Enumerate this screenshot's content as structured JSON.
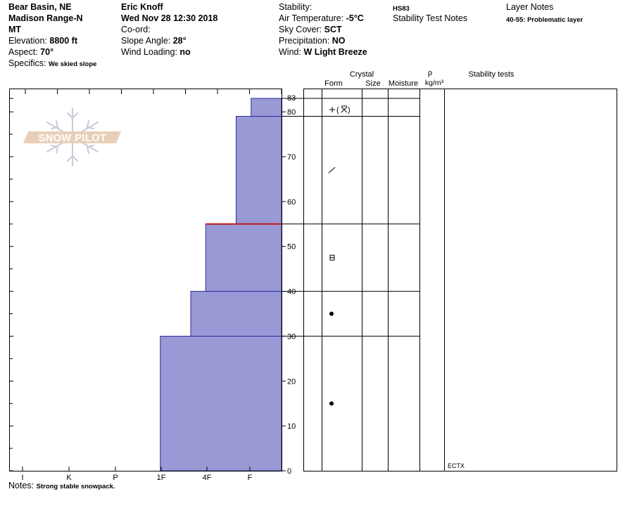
{
  "header": {
    "location_line1": "Bear Basin, NE",
    "location_line2": "Madison Range-N",
    "location_line3": "MT",
    "elevation_label": "Elevation:",
    "elevation_value": "8800 ft",
    "aspect_label": "Aspect:",
    "aspect_value": "70°",
    "specifics_label": "Specifics:",
    "specifics_value": "We skied slope",
    "observer": "Eric Knoff",
    "datetime": "Wed Nov 28 12:30 2018",
    "coord_label": "Co-ord:",
    "slope_label": "Slope Angle:",
    "slope_value": "28°",
    "wind_loading_label": "Wind Loading:",
    "wind_loading_value": "no",
    "stability_label": "Stability:",
    "air_temp_label": "Air Temperature:",
    "air_temp_value": "-5°C",
    "sky_label": "Sky Cover:",
    "sky_value": "SCT",
    "precip_label": "Precipitation:",
    "precip_value": "NO",
    "wind_label": "Wind:",
    "wind_value": "W Light Breeze",
    "hs_value": "HS83",
    "stability_notes_label": "Stability Test Notes",
    "layer_notes_label": "Layer Notes",
    "layer_notes_value": "40-55: Problematic layer"
  },
  "table_headers": {
    "crystal": "Crystal",
    "form": "Form",
    "size": "Size",
    "moisture": "Moisture",
    "rho": "ρ",
    "density_unit": "kg/m³",
    "stability_tests": "Stability tests"
  },
  "watermark": "SNOW PILOT",
  "notes_label": "Notes:",
  "notes_value": "Strong stable snowpack.",
  "stability_test_entry": "ECTX",
  "chart_data": {
    "type": "bar",
    "description_free": true,
    "y_axis": {
      "ylim": [
        0,
        83
      ],
      "ticks": [
        0,
        10,
        20,
        30,
        40,
        50,
        60,
        70,
        80,
        83
      ]
    },
    "x_axis": {
      "tick_labels": [
        "I",
        "K",
        "P",
        "1F",
        "4F",
        "F"
      ]
    },
    "hardness_scale_max": 6,
    "layers": [
      {
        "bottom": 0,
        "top": 30,
        "hardness_level": 2.67
      },
      {
        "bottom": 30,
        "top": 40,
        "hardness_level": 2.0
      },
      {
        "bottom": 40,
        "top": 55,
        "hardness_level": 1.67
      },
      {
        "bottom": 55,
        "top": 79,
        "hardness_level": 1.0
      },
      {
        "bottom": 79,
        "top": 83,
        "hardness_level": 0.67
      }
    ],
    "problem_layer_height": 55,
    "problem_layer_color": "#c01818",
    "bar_fill": "#9999d6",
    "bar_stroke": "#2a2a9a",
    "crystal_rows": [
      {
        "height": 83
      },
      {
        "height": 79
      },
      {
        "height": 55
      },
      {
        "height": 40
      },
      {
        "height": 30
      }
    ],
    "crystal_symbols": [
      {
        "height": 80.5,
        "symbol": "+(⨯)"
      },
      {
        "height": 67,
        "symbol": "/"
      },
      {
        "height": 47.5,
        "symbol": "⊟"
      },
      {
        "height": 35,
        "symbol": "●"
      },
      {
        "height": 15,
        "symbol": "●"
      }
    ]
  }
}
